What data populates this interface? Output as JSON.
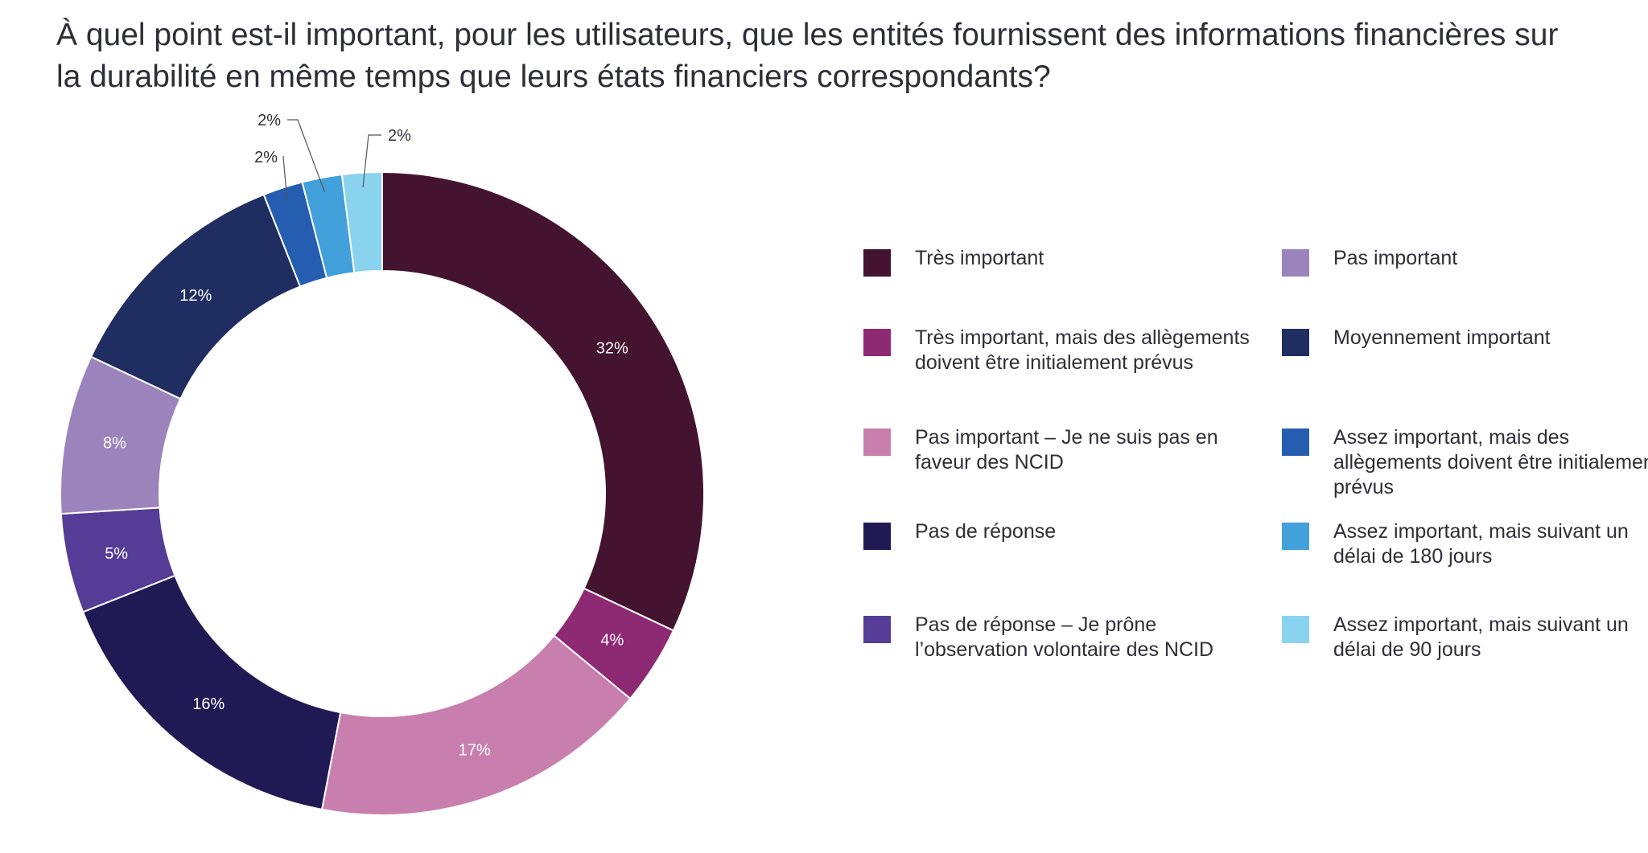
{
  "chart_data": {
    "type": "pie",
    "variant": "donut",
    "title": "À quel point est-il important, pour les utilisateurs, que les entités fournissent des informations financières sur la durabilité en même temps que leurs états financiers correspondants?",
    "unit": "%",
    "legend_placement": "right",
    "slices": [
      {
        "label": "Très important",
        "value": 32,
        "display": "32%",
        "color": "#43132f"
      },
      {
        "label": "Très important, mais des allègements doivent être initialement prévus",
        "value": 4,
        "display": "4%",
        "color": "#8e2a73"
      },
      {
        "label": "Pas important – Je ne suis pas en faveur des NCID",
        "value": 17,
        "display": "17%",
        "color": "#c87fae"
      },
      {
        "label": "Pas de réponse",
        "value": 16,
        "display": "16%",
        "color": "#201a54"
      },
      {
        "label": "Pas de réponse – Je prône l’observation volontaire des NCID",
        "value": 5,
        "display": "5%",
        "color": "#553c96"
      },
      {
        "label": "Pas important",
        "value": 8,
        "display": "8%",
        "color": "#9b84bb"
      },
      {
        "label": "Moyennement important",
        "value": 12,
        "display": "12%",
        "color": "#1f2d61"
      },
      {
        "label": "Assez important, mais des allègements doivent être initialement prévus",
        "value": 2,
        "display": "2%",
        "color": "#255db0"
      },
      {
        "label": "Assez important, mais suivant un délai de 180 jours",
        "value": 2,
        "display": "2%",
        "color": "#42a0db"
      },
      {
        "label": "Assez important, mais suivant un délai de 90 jours",
        "value": 2,
        "display": "2%",
        "color": "#8ad3ee"
      }
    ]
  }
}
